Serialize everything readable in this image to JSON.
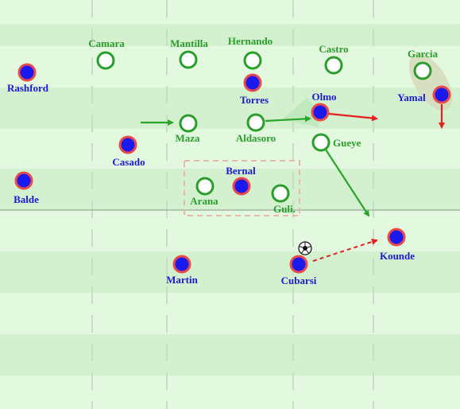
{
  "colors": {
    "pitch_light": "#e3f9df",
    "pitch_dark": "#d3f1cf",
    "pitch_line": "#ffffff",
    "home_fill": "#1a1aee",
    "home_ring": "#e84a4a",
    "home_text": "#1a1ad6",
    "away_fill": "#ffffff",
    "away_ring": "#2a9e2a",
    "away_text": "#2a9e2a",
    "arrow_green": "#2aa52a",
    "arrow_red": "#e42020",
    "box_dashed": "#e8b8b0",
    "shade": "#bfe8bd",
    "ellipse_shade": "#d6dcbc"
  },
  "away_players": [
    {
      "name": "Camara"
    },
    {
      "name": "Mantilla"
    },
    {
      "name": "Hernando"
    },
    {
      "name": "Castro"
    },
    {
      "name": "Garcia"
    },
    {
      "name": "Maza"
    },
    {
      "name": "Aldasoro"
    },
    {
      "name": "Gueye"
    },
    {
      "name": "Arana"
    },
    {
      "name": "Guli."
    }
  ],
  "home_players": [
    {
      "name": "Rashford"
    },
    {
      "name": "Torres"
    },
    {
      "name": "Olmo"
    },
    {
      "name": "Yamal"
    },
    {
      "name": "Casado"
    },
    {
      "name": "Bernal"
    },
    {
      "name": "Balde"
    },
    {
      "name": "Kounde"
    },
    {
      "name": "Martin"
    },
    {
      "name": "Cubarsi"
    }
  ],
  "ball": {
    "icon": "football-icon",
    "holder": "Cubarsi"
  },
  "arrows": [
    {
      "kind": "movement",
      "color": "green",
      "from": "Casado",
      "to": "Maza"
    },
    {
      "kind": "movement",
      "color": "green",
      "from": "Aldasoro",
      "to": "Olmo"
    },
    {
      "kind": "movement",
      "color": "green",
      "from": "Gueye",
      "to": "half-space"
    },
    {
      "kind": "movement",
      "color": "red",
      "from": "Olmo",
      "to": "right"
    },
    {
      "kind": "movement",
      "color": "red",
      "from": "Yamal",
      "to": "down"
    },
    {
      "kind": "pass",
      "color": "red",
      "style": "dashed",
      "from": "Cubarsi",
      "to": "Kounde"
    }
  ],
  "zones": [
    {
      "kind": "dashed-box",
      "around": [
        "Arana",
        "Bernal",
        "Guli."
      ]
    },
    {
      "kind": "cover-shadow",
      "from": "Olmo"
    },
    {
      "kind": "ellipse",
      "around": [
        "Garcia",
        "Yamal"
      ]
    }
  ]
}
